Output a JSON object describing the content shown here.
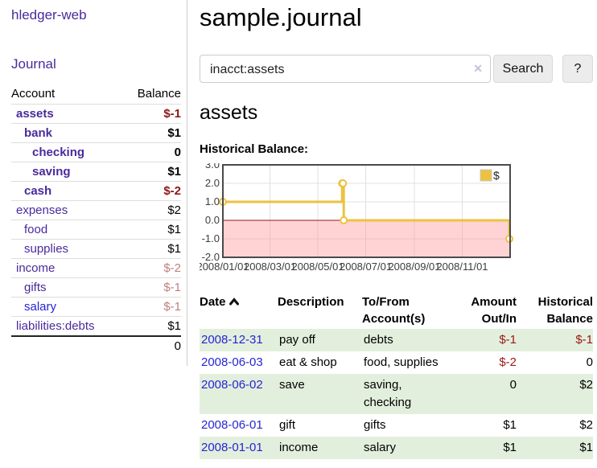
{
  "sidebar": {
    "brand": "hledger-web",
    "journal_link": "Journal",
    "accounts_table": {
      "headers": {
        "account": "Account",
        "balance": "Balance"
      },
      "rows": [
        {
          "name": "assets",
          "depth": 1,
          "bold": true,
          "link_color": "purple",
          "balance": "$-1",
          "balance_class": "neg-strong"
        },
        {
          "name": "bank",
          "depth": 2,
          "bold": true,
          "link_color": "purple",
          "balance": "$1",
          "balance_class": "pos"
        },
        {
          "name": "checking",
          "depth": 3,
          "bold": true,
          "link_color": "purple",
          "balance": "0",
          "balance_class": "pos"
        },
        {
          "name": "saving",
          "depth": 3,
          "bold": true,
          "link_color": "purple",
          "balance": "$1",
          "balance_class": "pos"
        },
        {
          "name": "cash",
          "depth": 2,
          "bold": true,
          "link_color": "purple",
          "balance": "$-2",
          "balance_class": "neg-strong"
        },
        {
          "name": "expenses",
          "depth": 1,
          "bold": false,
          "link_color": "purple",
          "balance": "$2",
          "balance_class": "pos"
        },
        {
          "name": "food",
          "depth": 2,
          "bold": false,
          "link_color": "purple",
          "balance": "$1",
          "balance_class": "pos"
        },
        {
          "name": "supplies",
          "depth": 2,
          "bold": false,
          "link_color": "purple",
          "balance": "$1",
          "balance_class": "pos"
        },
        {
          "name": "income",
          "depth": 1,
          "bold": false,
          "link_color": "purple",
          "balance": "$-2",
          "balance_class": "neg-muted"
        },
        {
          "name": "gifts",
          "depth": 2,
          "bold": false,
          "link_color": "purple",
          "balance": "$-1",
          "balance_class": "neg-muted"
        },
        {
          "name": "salary",
          "depth": 2,
          "bold": false,
          "link_color": "blue",
          "balance": "$-1",
          "balance_class": "neg-muted"
        },
        {
          "name": "liabilities:debts",
          "depth": 1,
          "bold": false,
          "link_color": "purple",
          "balance": "$1",
          "balance_class": "pos"
        }
      ],
      "total": "0"
    }
  },
  "header": {
    "title": "sample.journal"
  },
  "search": {
    "value": "inacct:assets",
    "clear_icon": "✕",
    "button_label": "Search",
    "help_label": "?"
  },
  "account_page": {
    "title": "assets",
    "chart_label": "Historical Balance:"
  },
  "chart_data": {
    "type": "line",
    "title": "Historical Balance",
    "step": true,
    "series": [
      {
        "name": "$",
        "color": "#EDC240",
        "points": [
          {
            "date": "2008-01-01",
            "day": 0,
            "value": 1
          },
          {
            "date": "2008-06-01",
            "day": 152,
            "value": 2
          },
          {
            "date": "2008-06-02",
            "day": 153,
            "value": 2
          },
          {
            "date": "2008-06-03",
            "day": 154,
            "value": 0
          },
          {
            "date": "2008-12-31",
            "day": 365,
            "value": -1
          }
        ]
      }
    ],
    "x_range_days": [
      0,
      366
    ],
    "x_ticks": [
      {
        "day": 0,
        "label": "2008/01/01"
      },
      {
        "day": 60,
        "label": "2008/03/01"
      },
      {
        "day": 121,
        "label": "2008/05/01"
      },
      {
        "day": 182,
        "label": "2008/07/01"
      },
      {
        "day": 244,
        "label": "2008/09/01"
      },
      {
        "day": 305,
        "label": "2008/11/01"
      }
    ],
    "ylim": [
      -2,
      3
    ],
    "y_ticks": [
      {
        "value": 3,
        "label": "3.0"
      },
      {
        "value": 2,
        "label": "2.0"
      },
      {
        "value": 1,
        "label": "1.0"
      },
      {
        "value": 0,
        "label": "0.0"
      },
      {
        "value": -1,
        "label": "-1.0"
      },
      {
        "value": -2,
        "label": "-2.0"
      }
    ],
    "grid": true,
    "legend": {
      "label": "$",
      "position": "top-right"
    },
    "marker": "open-circle",
    "grid_color": "#e0e0e0",
    "border_color": "#4a4a4a",
    "zero_line_color": "#8b1a1a",
    "negative_region_fill": "#ff9e9e",
    "axis_text_color": "#3c3c3c"
  },
  "register_table": {
    "headers": {
      "date": "Date",
      "sort_icon": "chevron-up",
      "description": "Description",
      "accounts": "To/From\nAccount(s)",
      "amount": "Amount\nOut/In",
      "balance": "Historical\nBalance"
    },
    "rows": [
      {
        "date": "2008-12-31",
        "description": "pay off",
        "accounts": [
          "debts"
        ],
        "amount": "$-1",
        "amount_class": "neg",
        "balance": "$-1",
        "balance_class": "neg"
      },
      {
        "date": "2008-06-03",
        "description": "eat & shop",
        "accounts": [
          "food, supplies"
        ],
        "amount": "$-2",
        "amount_class": "neg",
        "balance": "0",
        "balance_class": "pos"
      },
      {
        "date": "2008-06-02",
        "description": "save",
        "accounts": [
          "saving,",
          "checking"
        ],
        "amount": "0",
        "amount_class": "pos",
        "balance": "$2",
        "balance_class": "pos"
      },
      {
        "date": "2008-06-01",
        "description": "gift",
        "accounts": [
          "gifts"
        ],
        "amount": "$1",
        "amount_class": "pos",
        "balance": "$2",
        "balance_class": "pos"
      },
      {
        "date": "2008-01-01",
        "description": "income",
        "accounts": [
          "salary"
        ],
        "amount": "$1",
        "amount_class": "pos",
        "balance": "$1",
        "balance_class": "pos"
      }
    ]
  },
  "colors": {
    "link_purple": "#4a2a9d",
    "link_blue": "#2525d4",
    "negative_strong": "#8f1515",
    "negative_muted": "#bd8080",
    "negative_table": "#9a1818",
    "row_green": "#e3efdd",
    "series_gold": "#EDC240",
    "button_bg": "#ececec"
  }
}
